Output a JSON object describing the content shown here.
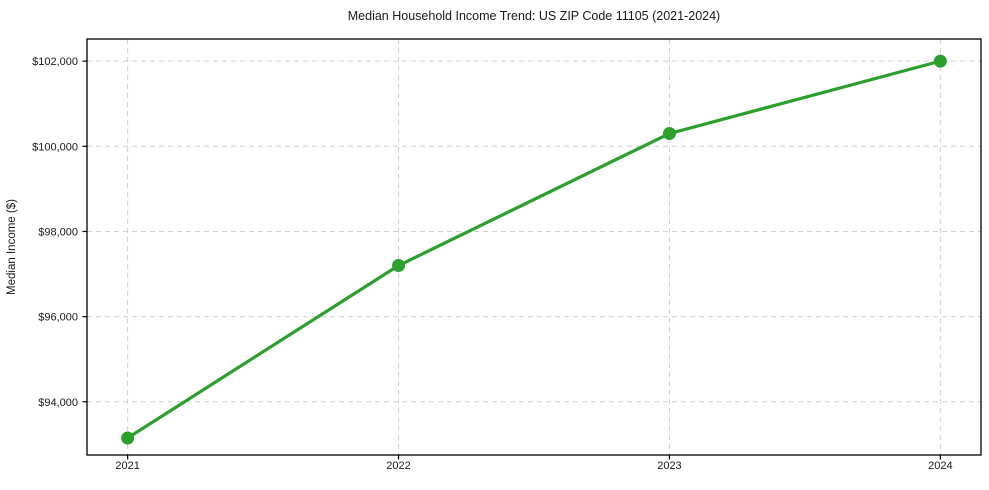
{
  "chart_data": {
    "type": "line",
    "title": "Median Household Income Trend: US ZIP Code 11105 (2021-2024)",
    "xlabel": "",
    "ylabel": "Median Income ($)",
    "x": [
      2021,
      2022,
      2023,
      2024
    ],
    "x_tick_labels": [
      "2021",
      "2022",
      "2023",
      "2024"
    ],
    "values": [
      93150,
      97200,
      100300,
      102000
    ],
    "y_ticks": [
      94000,
      96000,
      98000,
      100000,
      102000
    ],
    "y_tick_labels": [
      "$94,000",
      "$96,000",
      "$98,000",
      "$100,000",
      "$102,000"
    ],
    "xlim": [
      2020.85,
      2024.15
    ],
    "ylim": [
      92750,
      102520
    ],
    "grid": "dashed",
    "legend": "none",
    "line_color": "#2ca02c",
    "marker": "circle",
    "grid_color": "#d0d0d0",
    "border_color": "#000000",
    "background": "#ffffff"
  }
}
